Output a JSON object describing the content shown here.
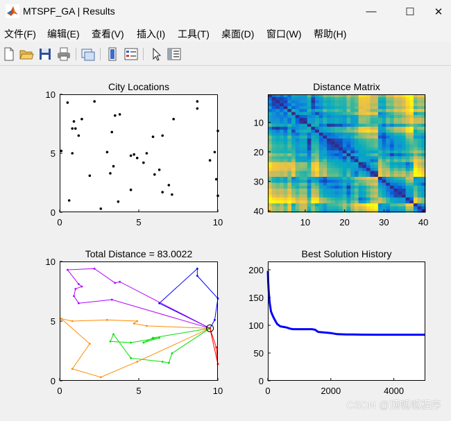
{
  "window": {
    "title": "MTSPF_GA | Results",
    "controls": {
      "minimize": "—",
      "maximize": "☐",
      "close": "✕"
    }
  },
  "menu": [
    "文件(F)",
    "编辑(E)",
    "查看(V)",
    "插入(I)",
    "工具(T)",
    "桌面(D)",
    "窗口(W)",
    "帮助(H)"
  ],
  "toolbar_icons": [
    "new-figure-icon",
    "open-icon",
    "save-icon",
    "print-icon",
    "link-icon",
    "colorbar-icon",
    "legend-icon",
    "pointer-icon",
    "property-editor-icon"
  ],
  "chart_data": [
    {
      "type": "scatter",
      "title": "City Locations",
      "xlim": [
        0,
        10
      ],
      "ylim": [
        0,
        10
      ],
      "xticks": [
        "0",
        "5",
        "10"
      ],
      "yticks": [
        "0",
        "5",
        "10"
      ],
      "x": [
        0.5,
        0.9,
        1.0,
        1.4,
        1.2,
        2.2,
        0.8,
        3.3,
        3.5,
        3.8,
        4.7,
        0.8,
        0.1,
        3.0,
        3.2,
        4.5,
        4.9,
        5.3,
        5.5,
        5.9,
        6.3,
        6.5,
        7.2,
        9.5,
        9.8,
        10.0,
        8.7,
        8.7,
        1.9,
        3.4,
        4.5,
        6.0,
        6.5,
        6.9,
        7.1,
        9.9,
        10.0,
        0.6,
        2.6,
        3.7
      ],
      "y": [
        9.3,
        7.7,
        7.1,
        7.9,
        6.5,
        9.4,
        5.0,
        6.8,
        8.2,
        8.3,
        4.9,
        7.1,
        5.2,
        5.1,
        3.3,
        4.8,
        4.6,
        4.2,
        5.0,
        6.4,
        3.6,
        6.5,
        7.9,
        4.4,
        5.1,
        6.9,
        8.8,
        9.4,
        3.1,
        3.9,
        1.9,
        3.2,
        1.7,
        2.3,
        1.5,
        2.8,
        1.4,
        1.0,
        0.3,
        0.9
      ],
      "color": "#000000"
    },
    {
      "type": "heatmap",
      "title": "Distance Matrix",
      "xlim": [
        0.5,
        40.5
      ],
      "ylim": [
        0.5,
        40.5
      ],
      "xticks": [
        "10",
        "20",
        "30",
        "40"
      ],
      "yticks": [
        "10",
        "20",
        "30",
        "40"
      ],
      "size": 40,
      "colormap": "parula"
    },
    {
      "type": "line",
      "title": "Total Distance = 83.0022",
      "xlim": [
        0,
        10
      ],
      "ylim": [
        0,
        10
      ],
      "xticks": [
        "0",
        "5",
        "10"
      ],
      "yticks": [
        "0",
        "5",
        "10"
      ],
      "depot": [
        9.5,
        4.4
      ],
      "series": [
        {
          "color": "#0000ff",
          "x": [
            9.5,
            9.8,
            10.0,
            8.7,
            8.7,
            6.3,
            9.5
          ],
          "y": [
            4.4,
            5.1,
            6.9,
            8.8,
            9.4,
            6.5,
            4.4
          ]
        },
        {
          "color": "#b000ff",
          "x": [
            9.5,
            3.3,
            1.2,
            0.9,
            1.0,
            1.4,
            1.2,
            0.5,
            2.2,
            3.5,
            3.8,
            9.5
          ],
          "y": [
            4.4,
            6.8,
            6.5,
            7.1,
            7.7,
            7.9,
            8.1,
            9.3,
            9.4,
            8.2,
            8.3,
            4.4
          ]
        },
        {
          "color": "#ff8c00",
          "x": [
            9.5,
            5.5,
            4.7,
            4.9,
            3.0,
            0.8,
            0.1,
            1.9,
            0.8,
            2.6,
            4.9,
            9.5
          ],
          "y": [
            4.4,
            4.6,
            4.8,
            5.0,
            5.1,
            5.0,
            5.2,
            3.1,
            1.0,
            0.3,
            1.6,
            4.4
          ]
        },
        {
          "color": "#00e000",
          "x": [
            9.5,
            5.9,
            5.3,
            6.3,
            4.5,
            3.2,
            3.4,
            4.5,
            6.5,
            6.9,
            7.1,
            9.5
          ],
          "y": [
            4.4,
            3.6,
            3.2,
            3.6,
            3.2,
            3.3,
            3.9,
            1.9,
            1.6,
            1.5,
            2.3,
            4.4
          ]
        },
        {
          "color": "#ff0000",
          "x": [
            9.5,
            9.9,
            10.0,
            9.5
          ],
          "y": [
            4.4,
            2.8,
            1.4,
            4.4
          ]
        }
      ]
    },
    {
      "type": "line",
      "title": "Best Solution History",
      "xlim": [
        0,
        5000
      ],
      "ylim": [
        0,
        215
      ],
      "xticks": [
        "0",
        "2000",
        "4000"
      ],
      "yticks": [
        "0",
        "50",
        "100",
        "150",
        "200"
      ],
      "series": [
        {
          "color": "#0000ff",
          "x": [
            1,
            10,
            30,
            60,
            100,
            150,
            200,
            260,
            300,
            400,
            500,
            600,
            700,
            800,
            900,
            1000,
            1200,
            1400,
            1500,
            1550,
            1600,
            1800,
            2000,
            2200,
            2500,
            3000,
            3500,
            4000,
            4500,
            5000
          ],
          "y": [
            198,
            180,
            160,
            140,
            125,
            118,
            112,
            106,
            102,
            98,
            97,
            96,
            94,
            93,
            93,
            93,
            93,
            93,
            92,
            90,
            88,
            87,
            86,
            84,
            83.5,
            83.2,
            83.0,
            83.0,
            83.0,
            83.0
          ]
        }
      ]
    }
  ],
  "watermark": "CSDN @顶呱呱程序"
}
